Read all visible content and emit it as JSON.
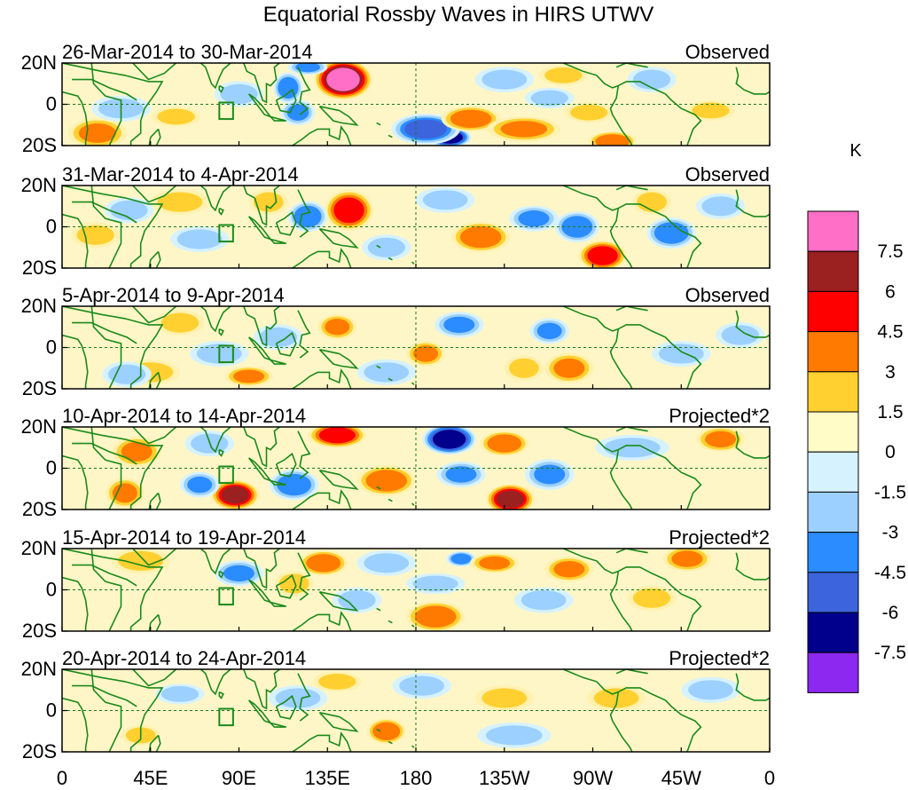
{
  "chart_data": {
    "type": "heatmap",
    "title": "Equatorial Rossby Waves in HIRS UTWV",
    "colorbar": {
      "unit": "K",
      "levels": [
        "7.5",
        "6",
        "4.5",
        "3",
        "1.5",
        "0",
        "-1.5",
        "-3",
        "-4.5",
        "-6",
        "-7.5"
      ],
      "colors": [
        "#ff6ec7",
        "#9b2020",
        "#ff0000",
        "#ff7a00",
        "#ffd030",
        "#fffcc8",
        "#d6f2ff",
        "#9cd0ff",
        "#2a8cff",
        "#3c64dc",
        "#00008c",
        "#8c28f0"
      ]
    },
    "x_ticks": [
      {
        "lon": 0,
        "label": "0"
      },
      {
        "lon": 45,
        "label": "45E"
      },
      {
        "lon": 90,
        "label": "90E"
      },
      {
        "lon": 135,
        "label": "135E"
      },
      {
        "lon": 180,
        "label": "180"
      },
      {
        "lon": 225,
        "label": "135W"
      },
      {
        "lon": 270,
        "label": "90W"
      },
      {
        "lon": 315,
        "label": "45W"
      },
      {
        "lon": 360,
        "label": "0"
      }
    ],
    "y_ticks": [
      {
        "lat": 20,
        "label": "20N"
      },
      {
        "lat": 0,
        "label": "0"
      },
      {
        "lat": -20,
        "label": "20S"
      }
    ],
    "panels": [
      {
        "period": "26-Mar-2014 to 30-Mar-2014",
        "kind": "Observed",
        "anomalies": [
          {
            "lon": 143,
            "lat": 12,
            "rx": 12,
            "ry": 8,
            "v": 8
          },
          {
            "lon": 115,
            "lat": 8,
            "rx": 6,
            "ry": 6,
            "v": -4
          },
          {
            "lon": 120,
            "lat": -4,
            "rx": 7,
            "ry": 5,
            "v": -3
          },
          {
            "lon": 125,
            "lat": 18,
            "rx": 8,
            "ry": 3,
            "v": -3
          },
          {
            "lon": 197,
            "lat": -16,
            "rx": 9,
            "ry": 4,
            "v": -7
          },
          {
            "lon": 185,
            "lat": -12,
            "rx": 14,
            "ry": 6,
            "v": -5
          },
          {
            "lon": 208,
            "lat": -7,
            "rx": 12,
            "ry": 5,
            "v": 4
          },
          {
            "lon": 280,
            "lat": -18,
            "rx": 10,
            "ry": 4,
            "v": 4
          },
          {
            "lon": 268,
            "lat": -4,
            "rx": 10,
            "ry": 4,
            "v": 2
          },
          {
            "lon": 248,
            "lat": 3,
            "rx": 10,
            "ry": 4,
            "v": -2
          },
          {
            "lon": 18,
            "lat": -14,
            "rx": 12,
            "ry": 6,
            "v": 3
          },
          {
            "lon": 58,
            "lat": -6,
            "rx": 10,
            "ry": 4,
            "v": 2
          },
          {
            "lon": 30,
            "lat": -2,
            "rx": 12,
            "ry": 5,
            "v": -2
          },
          {
            "lon": 90,
            "lat": 5,
            "rx": 10,
            "ry": 5,
            "v": -2
          },
          {
            "lon": 235,
            "lat": -12,
            "rx": 15,
            "ry": 5,
            "v": 3
          },
          {
            "lon": 225,
            "lat": 12,
            "rx": 12,
            "ry": 5,
            "v": -2
          },
          {
            "lon": 330,
            "lat": -3,
            "rx": 10,
            "ry": 4,
            "v": 2
          },
          {
            "lon": 300,
            "lat": 12,
            "rx": 10,
            "ry": 5,
            "v": -2
          },
          {
            "lon": 255,
            "lat": 14,
            "rx": 10,
            "ry": 4,
            "v": 2
          }
        ]
      },
      {
        "period": "31-Mar-2014 to 4-Apr-2014",
        "kind": "Observed",
        "anomalies": [
          {
            "lon": 146,
            "lat": 8,
            "rx": 10,
            "ry": 8,
            "v": 5
          },
          {
            "lon": 125,
            "lat": 5,
            "rx": 8,
            "ry": 6,
            "v": -4
          },
          {
            "lon": 213,
            "lat": -5,
            "rx": 12,
            "ry": 6,
            "v": 4
          },
          {
            "lon": 275,
            "lat": -14,
            "rx": 10,
            "ry": 6,
            "v": 5
          },
          {
            "lon": 262,
            "lat": 0,
            "rx": 9,
            "ry": 6,
            "v": -4
          },
          {
            "lon": 240,
            "lat": 4,
            "rx": 10,
            "ry": 5,
            "v": -3
          },
          {
            "lon": 310,
            "lat": -3,
            "rx": 10,
            "ry": 6,
            "v": -4
          },
          {
            "lon": 17,
            "lat": -4,
            "rx": 10,
            "ry": 5,
            "v": 2
          },
          {
            "lon": 70,
            "lat": -6,
            "rx": 12,
            "ry": 5,
            "v": -2
          },
          {
            "lon": 60,
            "lat": 12,
            "rx": 12,
            "ry": 5,
            "v": 2
          },
          {
            "lon": 105,
            "lat": 12,
            "rx": 8,
            "ry": 5,
            "v": 2
          },
          {
            "lon": 165,
            "lat": -10,
            "rx": 10,
            "ry": 5,
            "v": -2
          },
          {
            "lon": 300,
            "lat": 12,
            "rx": 8,
            "ry": 5,
            "v": 2
          },
          {
            "lon": 335,
            "lat": 10,
            "rx": 10,
            "ry": 5,
            "v": -2
          },
          {
            "lon": 195,
            "lat": 13,
            "rx": 12,
            "ry": 5,
            "v": -2
          },
          {
            "lon": 34,
            "lat": 8,
            "rx": 10,
            "ry": 5,
            "v": -2
          }
        ]
      },
      {
        "period": "5-Apr-2014 to 9-Apr-2014",
        "kind": "Observed",
        "anomalies": [
          {
            "lon": 140,
            "lat": 10,
            "rx": 8,
            "ry": 5,
            "v": 3
          },
          {
            "lon": 202,
            "lat": 11,
            "rx": 10,
            "ry": 5,
            "v": -3
          },
          {
            "lon": 185,
            "lat": -3,
            "rx": 8,
            "ry": 5,
            "v": 3
          },
          {
            "lon": 248,
            "lat": 8,
            "rx": 8,
            "ry": 5,
            "v": -3
          },
          {
            "lon": 258,
            "lat": -10,
            "rx": 10,
            "ry": 6,
            "v": 3
          },
          {
            "lon": 235,
            "lat": -10,
            "rx": 8,
            "ry": 5,
            "v": 2
          },
          {
            "lon": 95,
            "lat": -14,
            "rx": 10,
            "ry": 4,
            "v": 3
          },
          {
            "lon": 80,
            "lat": -3,
            "rx": 12,
            "ry": 5,
            "v": -2
          },
          {
            "lon": 45,
            "lat": -12,
            "rx": 12,
            "ry": 5,
            "v": 2
          },
          {
            "lon": 33,
            "lat": -13,
            "rx": 10,
            "ry": 5,
            "v": -2
          },
          {
            "lon": 315,
            "lat": -3,
            "rx": 12,
            "ry": 5,
            "v": -2
          },
          {
            "lon": 165,
            "lat": -12,
            "rx": 12,
            "ry": 5,
            "v": -2
          },
          {
            "lon": 110,
            "lat": 5,
            "rx": 10,
            "ry": 5,
            "v": -2
          },
          {
            "lon": 345,
            "lat": 6,
            "rx": 10,
            "ry": 5,
            "v": -2
          },
          {
            "lon": 60,
            "lat": 12,
            "rx": 10,
            "ry": 5,
            "v": 2
          }
        ]
      },
      {
        "period": "10-Apr-2014 to 14-Apr-2014",
        "kind": "Projected*2",
        "anomalies": [
          {
            "lon": 197,
            "lat": 14,
            "rx": 11,
            "ry": 6,
            "v": -7
          },
          {
            "lon": 140,
            "lat": 16,
            "rx": 12,
            "ry": 5,
            "v": 5
          },
          {
            "lon": 228,
            "lat": -15,
            "rx": 10,
            "ry": 6,
            "v": 6
          },
          {
            "lon": 88,
            "lat": -13,
            "rx": 10,
            "ry": 6,
            "v": 6
          },
          {
            "lon": 165,
            "lat": -6,
            "rx": 12,
            "ry": 6,
            "v": 4
          },
          {
            "lon": 225,
            "lat": 12,
            "rx": 10,
            "ry": 5,
            "v": 4
          },
          {
            "lon": 335,
            "lat": 14,
            "rx": 10,
            "ry": 5,
            "v": 3
          },
          {
            "lon": 38,
            "lat": 8,
            "rx": 10,
            "ry": 6,
            "v": 3
          },
          {
            "lon": 32,
            "lat": -12,
            "rx": 8,
            "ry": 6,
            "v": 3
          },
          {
            "lon": 118,
            "lat": -8,
            "rx": 10,
            "ry": 6,
            "v": -4
          },
          {
            "lon": 70,
            "lat": -8,
            "rx": 8,
            "ry": 5,
            "v": -3
          },
          {
            "lon": 203,
            "lat": -3,
            "rx": 10,
            "ry": 5,
            "v": -3
          },
          {
            "lon": 248,
            "lat": -3,
            "rx": 10,
            "ry": 6,
            "v": -3
          },
          {
            "lon": 290,
            "lat": 10,
            "rx": 15,
            "ry": 5,
            "v": -2
          },
          {
            "lon": 75,
            "lat": 12,
            "rx": 10,
            "ry": 5,
            "v": -2
          }
        ]
      },
      {
        "period": "15-Apr-2014 to 19-Apr-2014",
        "kind": "Projected*2",
        "anomalies": [
          {
            "lon": 133,
            "lat": 13,
            "rx": 10,
            "ry": 5,
            "v": 4
          },
          {
            "lon": 190,
            "lat": -13,
            "rx": 12,
            "ry": 6,
            "v": 4
          },
          {
            "lon": 90,
            "lat": 8,
            "rx": 10,
            "ry": 5,
            "v": -3
          },
          {
            "lon": 118,
            "lat": 3,
            "rx": 8,
            "ry": 5,
            "v": 2
          },
          {
            "lon": 203,
            "lat": 15,
            "rx": 6,
            "ry": 3,
            "v": -4
          },
          {
            "lon": 220,
            "lat": 13,
            "rx": 10,
            "ry": 4,
            "v": 3
          },
          {
            "lon": 258,
            "lat": 10,
            "rx": 10,
            "ry": 5,
            "v": 3
          },
          {
            "lon": 318,
            "lat": 15,
            "rx": 10,
            "ry": 5,
            "v": 3
          },
          {
            "lon": 165,
            "lat": 13,
            "rx": 12,
            "ry": 5,
            "v": -2
          },
          {
            "lon": 40,
            "lat": 14,
            "rx": 12,
            "ry": 5,
            "v": 2
          },
          {
            "lon": 190,
            "lat": 3,
            "rx": 12,
            "ry": 4,
            "v": -2
          },
          {
            "lon": 245,
            "lat": -5,
            "rx": 12,
            "ry": 5,
            "v": -2
          },
          {
            "lon": 150,
            "lat": -5,
            "rx": 10,
            "ry": 5,
            "v": -2
          },
          {
            "lon": 300,
            "lat": -4,
            "rx": 10,
            "ry": 5,
            "v": 2
          }
        ]
      },
      {
        "period": "20-Apr-2014 to 24-Apr-2014",
        "kind": "Projected*2",
        "anomalies": [
          {
            "lon": 165,
            "lat": -10,
            "rx": 8,
            "ry": 5,
            "v": 4
          },
          {
            "lon": 225,
            "lat": 6,
            "rx": 12,
            "ry": 5,
            "v": 2
          },
          {
            "lon": 282,
            "lat": 6,
            "rx": 12,
            "ry": 5,
            "v": 2
          },
          {
            "lon": 183,
            "lat": 12,
            "rx": 12,
            "ry": 5,
            "v": -2
          },
          {
            "lon": 230,
            "lat": -12,
            "rx": 15,
            "ry": 5,
            "v": -2
          },
          {
            "lon": 120,
            "lat": 6,
            "rx": 12,
            "ry": 5,
            "v": -2
          },
          {
            "lon": 140,
            "lat": 14,
            "rx": 10,
            "ry": 4,
            "v": 2
          },
          {
            "lon": 330,
            "lat": 10,
            "rx": 12,
            "ry": 5,
            "v": -2
          },
          {
            "lon": 60,
            "lat": 8,
            "rx": 10,
            "ry": 4,
            "v": -2
          },
          {
            "lon": 40,
            "lat": -12,
            "rx": 8,
            "ry": 4,
            "v": 2
          }
        ]
      }
    ]
  }
}
